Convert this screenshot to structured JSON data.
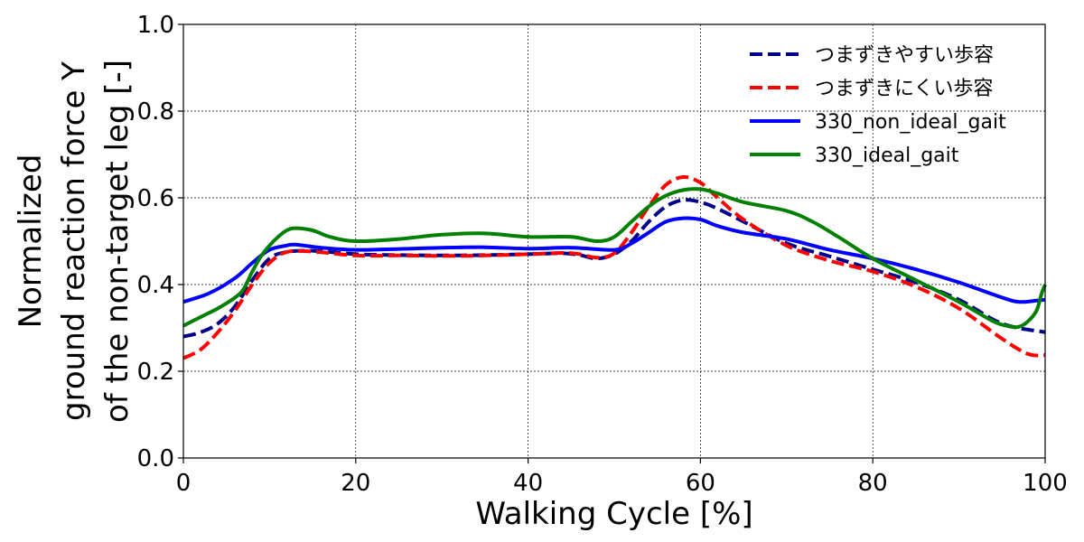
{
  "chart_data": {
    "type": "line",
    "xlabel": "Walking Cycle [%]",
    "ylabel_lines": [
      "Normalized",
      "ground reaction force Y",
      "of the non-target leg [-]"
    ],
    "xlim": [
      0,
      100
    ],
    "ylim": [
      0.0,
      1.0
    ],
    "xticks": [
      "0",
      "20",
      "40",
      "60",
      "80",
      "100"
    ],
    "yticks": [
      "0.0",
      "0.2",
      "0.4",
      "0.6",
      "0.8",
      "1.0"
    ],
    "grid": true,
    "legend_position": "top-right",
    "series": [
      {
        "name": "つまずきやすい歩容",
        "color": "#00008b",
        "dash": "dashed",
        "x": [
          0,
          2,
          4,
          6,
          8,
          10,
          12,
          15,
          20,
          25,
          30,
          35,
          40,
          44,
          46,
          48,
          50,
          52,
          54,
          56,
          58,
          60,
          62,
          65,
          70,
          75,
          80,
          85,
          90,
          95,
          100
        ],
        "y": [
          0.28,
          0.29,
          0.31,
          0.35,
          0.41,
          0.46,
          0.475,
          0.478,
          0.47,
          0.468,
          0.467,
          0.468,
          0.47,
          0.472,
          0.468,
          0.46,
          0.47,
          0.5,
          0.545,
          0.58,
          0.595,
          0.59,
          0.575,
          0.545,
          0.495,
          0.465,
          0.435,
          0.405,
          0.365,
          0.31,
          0.29
        ]
      },
      {
        "name": "つまずきにくい歩容",
        "color": "#ff0000",
        "dash": "dashed",
        "x": [
          0,
          2,
          4,
          6,
          8,
          10,
          12,
          15,
          20,
          25,
          30,
          35,
          40,
          44,
          46,
          48,
          50,
          52,
          54,
          56,
          58,
          60,
          62,
          65,
          70,
          75,
          80,
          85,
          90,
          95,
          98,
          100
        ],
        "y": [
          0.23,
          0.25,
          0.29,
          0.34,
          0.4,
          0.45,
          0.475,
          0.476,
          0.467,
          0.467,
          0.466,
          0.467,
          0.47,
          0.473,
          0.47,
          0.462,
          0.472,
          0.52,
          0.58,
          0.63,
          0.648,
          0.635,
          0.6,
          0.55,
          0.49,
          0.455,
          0.43,
          0.395,
          0.345,
          0.275,
          0.24,
          0.237
        ]
      },
      {
        "name": "330_non_ideal_gait",
        "color": "#0000ff",
        "dash": "solid",
        "x": [
          0,
          3,
          6,
          8,
          10,
          12,
          13,
          16,
          20,
          25,
          30,
          35,
          40,
          45,
          50,
          52,
          54,
          56,
          58,
          60,
          62,
          65,
          70,
          75,
          80,
          85,
          90,
          95,
          97,
          99,
          100
        ],
        "y": [
          0.36,
          0.38,
          0.415,
          0.45,
          0.48,
          0.49,
          0.492,
          0.485,
          0.48,
          0.482,
          0.485,
          0.486,
          0.483,
          0.485,
          0.48,
          0.495,
          0.52,
          0.545,
          0.553,
          0.55,
          0.535,
          0.52,
          0.505,
          0.48,
          0.46,
          0.435,
          0.405,
          0.37,
          0.36,
          0.363,
          0.365
        ]
      },
      {
        "name": "330_ideal_gait",
        "color": "#008000",
        "dash": "solid",
        "x": [
          0,
          1.5,
          2.5,
          4,
          6,
          7,
          8,
          9,
          10,
          11,
          12,
          13,
          15,
          17,
          20,
          25,
          30,
          35,
          40,
          45,
          48,
          50,
          52,
          54,
          56,
          58,
          60,
          62,
          65,
          70,
          73,
          76,
          80,
          85,
          90,
          94,
          96,
          97,
          98,
          99,
          99.6,
          100
        ],
        "y": [
          0.305,
          0.32,
          0.33,
          0.345,
          0.37,
          0.39,
          0.43,
          0.465,
          0.49,
          0.51,
          0.525,
          0.53,
          0.525,
          0.51,
          0.5,
          0.505,
          0.515,
          0.518,
          0.51,
          0.51,
          0.5,
          0.51,
          0.545,
          0.58,
          0.605,
          0.618,
          0.62,
          0.61,
          0.59,
          0.57,
          0.545,
          0.51,
          0.46,
          0.41,
          0.36,
          0.315,
          0.303,
          0.303,
          0.315,
          0.34,
          0.38,
          0.4
        ]
      }
    ]
  }
}
